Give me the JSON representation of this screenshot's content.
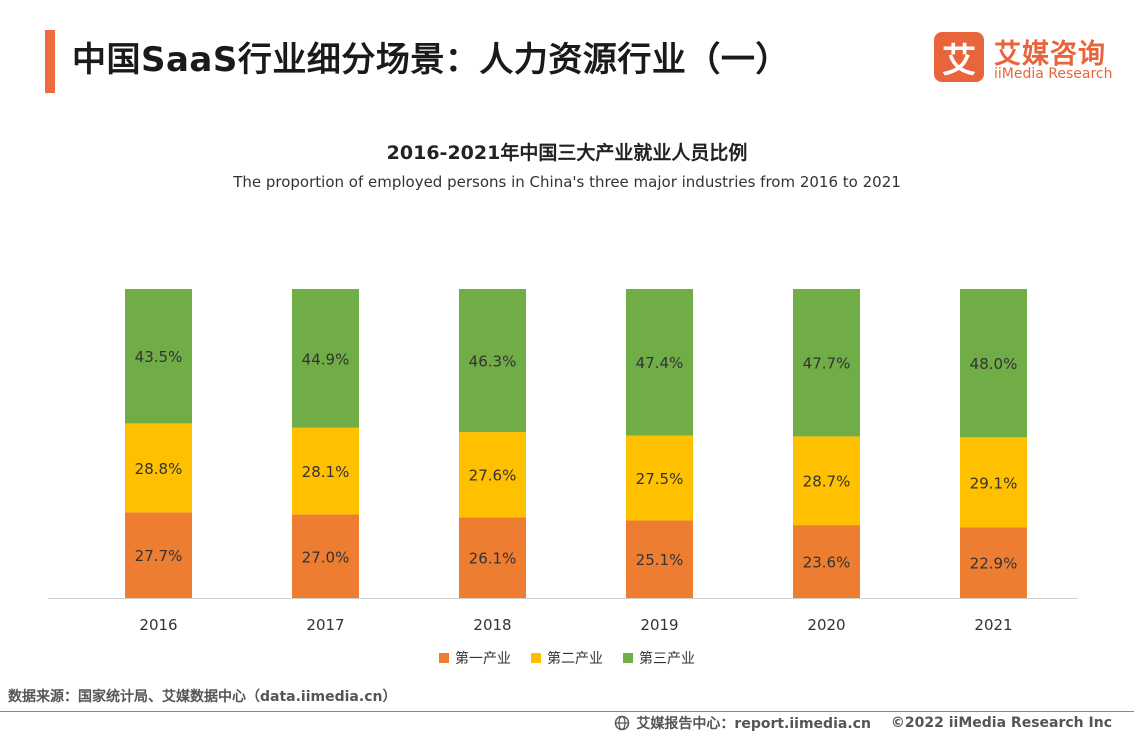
{
  "header": {
    "title": "中国SaaS行业细分场景：人力资源行业（一）",
    "logo_mark": "艾",
    "logo_cn": "艾媒咨询",
    "logo_en": "iiMedia Research"
  },
  "chart_data": {
    "type": "bar",
    "stacked": true,
    "title": "2016-2021年中国三大产业就业人员比例",
    "subtitle": "The proportion of employed persons in China's three major industries from 2016 to 2021",
    "categories": [
      "2016",
      "2017",
      "2018",
      "2019",
      "2020",
      "2021"
    ],
    "series": [
      {
        "name": "第一产业",
        "color": "#ed7d31",
        "values": [
          27.7,
          27.0,
          26.1,
          25.1,
          23.6,
          22.9
        ],
        "labels": [
          "27.7%",
          "27.0%",
          "26.1%",
          "25.1%",
          "23.6%",
          "22.9%"
        ]
      },
      {
        "name": "第二产业",
        "color": "#ffc000",
        "values": [
          28.8,
          28.1,
          27.6,
          27.5,
          28.7,
          29.1
        ],
        "labels": [
          "28.8%",
          "28.1%",
          "27.6%",
          "27.5%",
          "28.7%",
          "29.1%"
        ]
      },
      {
        "name": "第三产业",
        "color": "#70ad47",
        "values": [
          43.5,
          44.9,
          46.3,
          47.4,
          47.7,
          48.0
        ],
        "labels": [
          "43.5%",
          "44.9%",
          "46.3%",
          "47.4%",
          "47.7%",
          "48.0%"
        ]
      }
    ],
    "ylim": [
      0,
      100
    ],
    "grid": false,
    "legend": "bottom"
  },
  "source": "数据来源：国家统计局、艾媒数据中心（data.iimedia.cn）",
  "footer": {
    "report": "艾媒报告中心：report.iimedia.cn",
    "copyright": "©2022 iiMedia Research Inc"
  },
  "icons": {
    "footer": "globe-icon"
  }
}
